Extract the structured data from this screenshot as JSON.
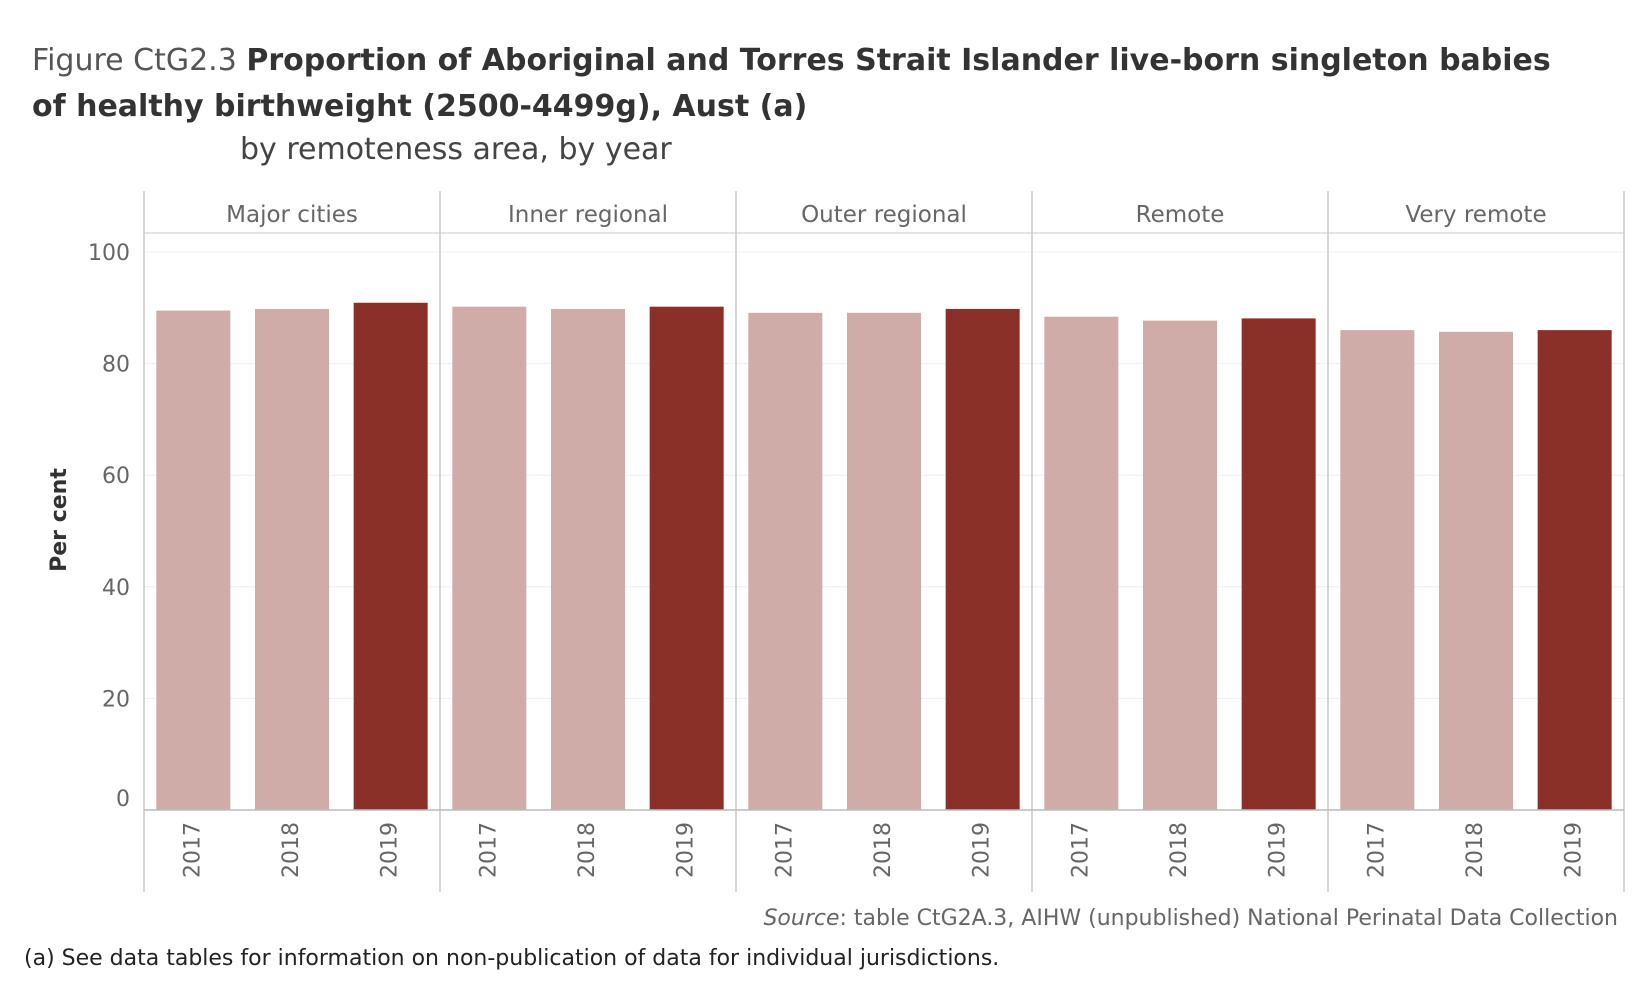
{
  "title": {
    "prefix": "Figure CtG2.3",
    "main": "Proportion of Aboriginal and Torres Strait Islander live-born singleton babies of healthy birthweight (2500-4499g), Aust (a)",
    "subtitle": "by remoteness area, by year"
  },
  "source": {
    "label": "Source",
    "text": ": table CtG2A.3, AIHW (unpublished) National Perinatal Data Collection"
  },
  "note": "(a) See data tables for information on non-publication of data for individual jurisdictions.",
  "colors": {
    "light_bar": "#cfaca8",
    "dark_bar": "#8b2f29",
    "grid": "#eeeeee",
    "axis": "#bbbbbb",
    "panel_border": "#c8c8c8"
  },
  "chart_data": {
    "type": "bar",
    "ylabel": "Per cent",
    "ylim": [
      0,
      100
    ],
    "yticks": [
      0,
      20,
      40,
      60,
      80,
      100
    ],
    "categories": [
      "2017",
      "2018",
      "2019"
    ],
    "highlight_category": "2019",
    "panels": [
      {
        "name": "Major cities",
        "values": [
          89.5,
          89.8,
          90.9
        ]
      },
      {
        "name": "Inner regional",
        "values": [
          90.2,
          89.8,
          90.2
        ]
      },
      {
        "name": "Outer regional",
        "values": [
          89.1,
          89.1,
          89.8
        ]
      },
      {
        "name": "Remote",
        "values": [
          88.4,
          87.7,
          88.1
        ]
      },
      {
        "name": "Very remote",
        "values": [
          86.0,
          85.7,
          86.0
        ]
      }
    ],
    "grid": true,
    "legend": "none"
  }
}
